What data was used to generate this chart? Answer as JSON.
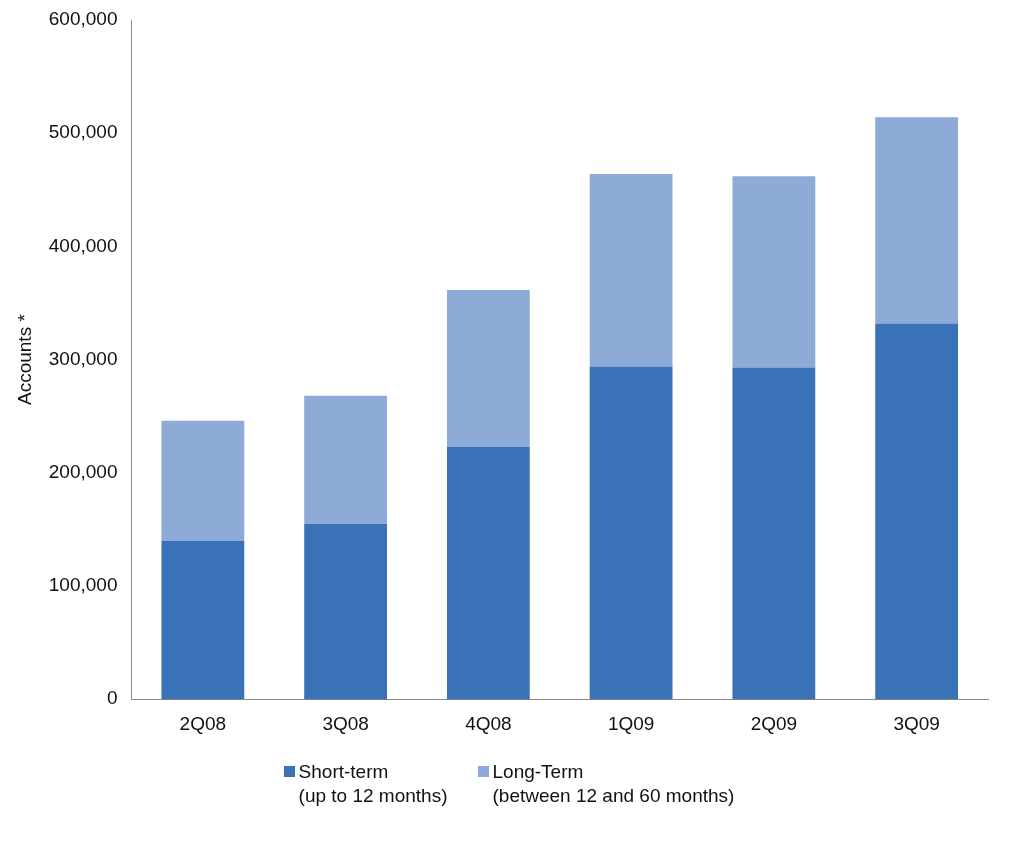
{
  "chart_data": {
    "type": "bar",
    "stacked": true,
    "ylabel": "Accounts *",
    "categories": [
      "2Q08",
      "3Q08",
      "4Q08",
      "1Q09",
      "2Q09",
      "3Q09"
    ],
    "series": [
      {
        "name": "Short-term\n(up to 12 months)",
        "color": "#3a72b8",
        "values": [
          140000,
          155000,
          223000,
          294000,
          293000,
          332000
        ]
      },
      {
        "name": "Long-Term\n(between 12 and 60 months)",
        "color": "#8eaad6",
        "values": [
          106000,
          113000,
          138500,
          170000,
          169000,
          182000
        ]
      }
    ],
    "ylim": [
      0,
      600000
    ],
    "yticks": [
      {
        "value": 0,
        "label": "0"
      },
      {
        "value": 100000,
        "label": "100,000"
      },
      {
        "value": 200000,
        "label": "200,000"
      },
      {
        "value": 300000,
        "label": "300,000"
      },
      {
        "value": 400000,
        "label": "400,000"
      },
      {
        "value": 500000,
        "label": "500,000"
      },
      {
        "value": 600000,
        "label": "600,000"
      }
    ],
    "grid": false,
    "legend": "bottom"
  }
}
